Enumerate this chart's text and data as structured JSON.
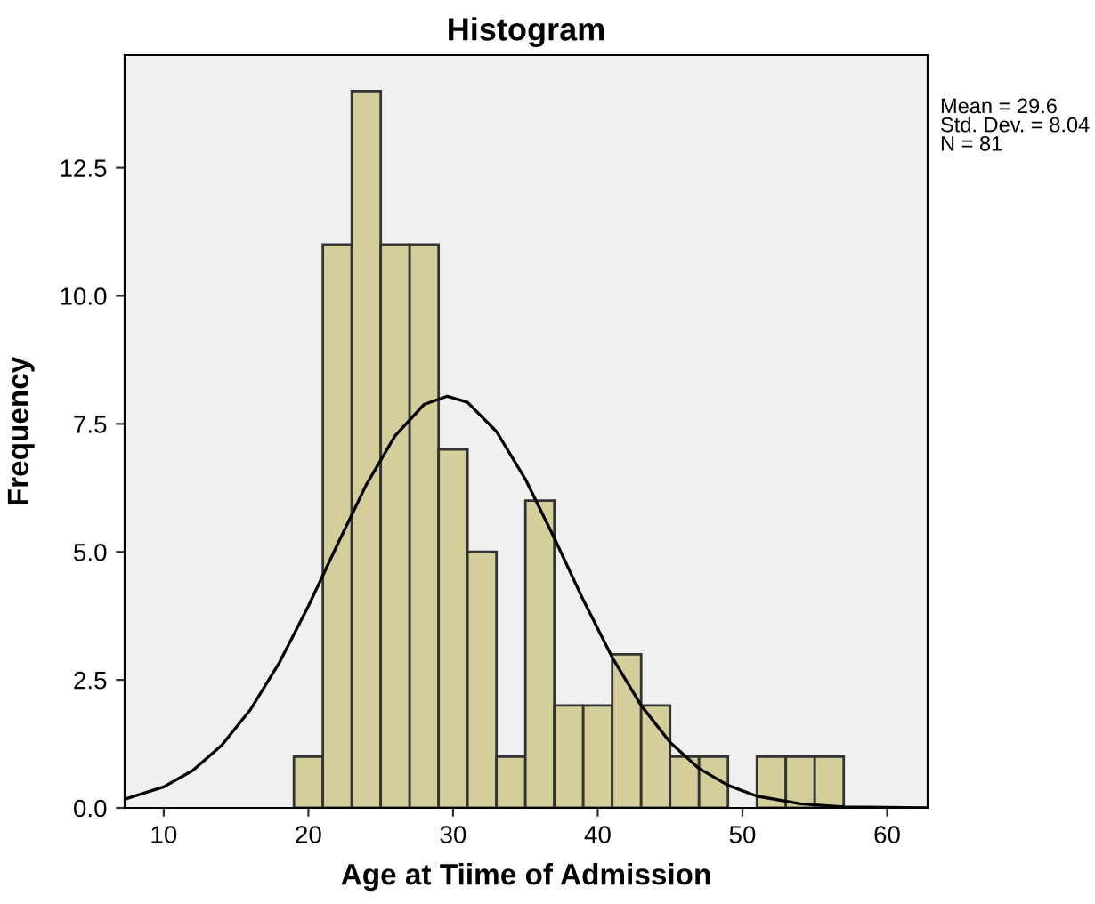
{
  "chart_data": {
    "type": "histogram",
    "title": "Histogram",
    "xlabel": "Age at Tiime of Admission",
    "ylabel": "Frequency",
    "bins": [
      19,
      21,
      23,
      25,
      27,
      29,
      31,
      33,
      35,
      37,
      39,
      41,
      43,
      45,
      47,
      49,
      51,
      53,
      55,
      57
    ],
    "values": [
      1,
      11,
      14,
      11,
      11,
      7,
      5,
      1,
      6,
      2,
      2,
      3,
      2,
      1,
      1,
      0,
      1,
      1,
      1
    ],
    "color": "#d4cf9a",
    "series": [
      {
        "type": "line",
        "color": "#000000",
        "x": [
          7.3,
          10,
          12,
          14,
          16,
          18,
          20,
          22,
          24,
          26,
          28,
          29.6,
          31,
          33,
          35,
          37,
          39,
          41,
          43,
          45,
          47,
          49,
          51,
          54,
          57,
          60,
          62.8
        ],
        "values": [
          0.17,
          0.41,
          0.73,
          1.22,
          1.92,
          2.84,
          3.94,
          5.14,
          6.31,
          7.27,
          7.88,
          8.04,
          7.92,
          7.35,
          6.42,
          5.27,
          4.06,
          2.94,
          2.0,
          1.28,
          0.77,
          0.44,
          0.23,
          0.08,
          0.02,
          0.01,
          0.0
        ]
      }
    ],
    "xlim": [
      7.3,
      62.8
    ],
    "ylim": [
      0,
      14.7
    ],
    "xticks": [
      10,
      20,
      30,
      40,
      50,
      60
    ],
    "yticks": [
      {
        "value": 0,
        "label": "0.0"
      },
      {
        "value": 2.5,
        "label": "2.5"
      },
      {
        "value": 5,
        "label": "5.0"
      },
      {
        "value": 7.5,
        "label": "7.5"
      },
      {
        "value": 10,
        "label": "10.0"
      },
      {
        "value": 12.5,
        "label": "12.5"
      }
    ],
    "grid": false,
    "legend": false,
    "annotations": [
      "Mean = 29.6\nStd. Dev. = 8.04\nN = 81"
    ]
  }
}
